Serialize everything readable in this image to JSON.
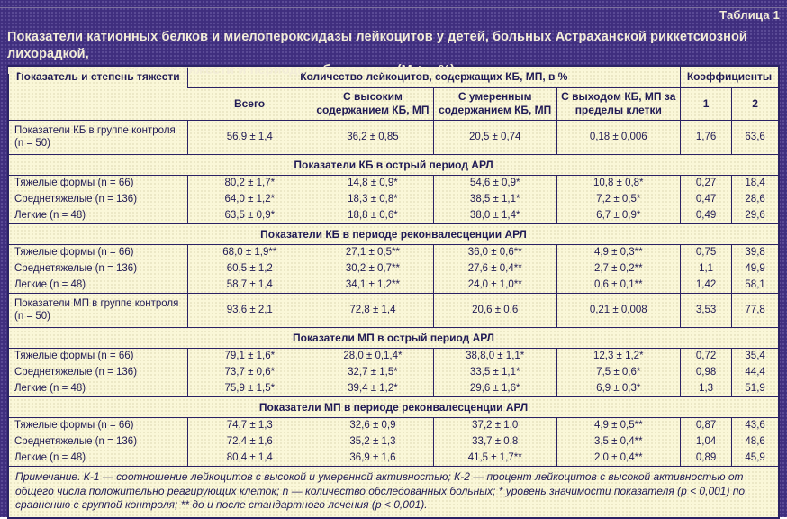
{
  "caption": "Таблица 1",
  "title": {
    "line1": "Показатели катионных белков и миелопероксидазы лейкоцитов у детей, больных Астраханской риккетсиозной лихорадкой,",
    "line2": "в зависимости от степени тяжести и периода заболевания (М ± m%)"
  },
  "header": {
    "indicator": "Показатель и степень тяжести",
    "group": "Количество лейкоцитов, содержащих КБ, МП, в %",
    "coefficients": "Коэффициенты",
    "sub_total": "Всего",
    "sub_high": "С высоким содержанием КБ, МП",
    "sub_moderate": "С умеренным содержанием КБ, МП",
    "sub_exit": "С выходом КБ, МП за пределы клетки",
    "sub_k1": "1",
    "sub_k2": "2"
  },
  "rows": [
    {
      "label": "Показатели КБ в группе контроля (n = 50)",
      "values": [
        "56,9 ± 1,4",
        "36,2 ± 0,85",
        "20,5 ± 0,74",
        "0,18 ± 0,006",
        "1,76",
        "63,6"
      ]
    },
    {
      "section": "Показатели КБ в острый период АРЛ"
    },
    {
      "label": "Тяжелые формы (n = 66)",
      "values": [
        "80,2 ± 1,7*",
        "14,8 ± 0,9*",
        "54,6 ± 0,9*",
        "10,8 ± 0,8*",
        "0,27",
        "18,4"
      ]
    },
    {
      "label": "Среднетяжелые (n = 136)",
      "values": [
        "64,0 ± 1,2*",
        "18,3 ± 0,8*",
        "38,5 ± 1,1*",
        "7,2 ± 0,5*",
        "0,47",
        "28,6"
      ]
    },
    {
      "label": "Легкие (n = 48)",
      "values": [
        "63,5 ± 0,9*",
        "18,8 ± 0,6*",
        "38,0 ± 1,4*",
        "6,7 ± 0,9*",
        "0,49",
        "29,6"
      ]
    },
    {
      "section": "Показатели КБ в периоде реконвалесценции АРЛ"
    },
    {
      "label": "Тяжелые формы (n = 66)",
      "values": [
        "68,0 ± 1,9**",
        "27,1 ± 0,5**",
        "36,0 ± 0,6**",
        "4,9 ± 0,3**",
        "0,75",
        "39,8"
      ]
    },
    {
      "label": "Среднетяжелые (n = 136)",
      "values": [
        "60,5 ± 1,2",
        "30,2 ± 0,7**",
        "27,6 ± 0,4**",
        "2,7 ± 0,2**",
        "1,1",
        "49,9"
      ]
    },
    {
      "label": "Легкие (n = 48)",
      "values": [
        "58,7 ± 1,4",
        "34,1 ± 1,2**",
        "24,0 ± 1,0**",
        "0,6 ± 0,1**",
        "1,42",
        "58,1"
      ]
    },
    {
      "label": "Показатели МП в группе контроля (n = 50)",
      "values": [
        "93,6 ± 2,1",
        "72,8 ± 1,4",
        "20,6 ± 0,6",
        "0,21 ± 0,008",
        "3,53",
        "77,8"
      ]
    },
    {
      "section": "Показатели МП в острый период АРЛ"
    },
    {
      "label": "Тяжелые формы (n = 66)",
      "values": [
        "79,1 ± 1,6*",
        "28,0 ± 0,1,4*",
        "38,8,0 ± 1,1*",
        "12,3 ± 1,2*",
        "0,72",
        "35,4"
      ]
    },
    {
      "label": "Среднетяжелые (n = 136)",
      "values": [
        "73,7 ± 0,6*",
        "32,7 ± 1,5*",
        "33,5 ± 1,1*",
        "7,5 ± 0,6*",
        "0,98",
        "44,4"
      ]
    },
    {
      "label": "Легкие (n = 48)",
      "values": [
        "75,9 ± 1,5*",
        "39,4 ± 1,2*",
        "29,6 ± 1,6*",
        "6,9 ± 0,3*",
        "1,3",
        "51,9"
      ]
    },
    {
      "section": "Показатели МП в периоде реконвалесценции АРЛ"
    },
    {
      "label": "Тяжелые формы (n = 66)",
      "values": [
        "74,7 ± 1,3",
        "32,6 ± 0,9",
        "37,2 ± 1,0",
        "4,9 ± 0,5**",
        "0,87",
        "43,6"
      ]
    },
    {
      "label": "Среднетяжелые (n = 136)",
      "values": [
        "72,4 ± 1,6",
        "35,2 ± 1,3",
        "33,7 ± 0,8",
        "3,5 ± 0,4**",
        "1,04",
        "48,6"
      ]
    },
    {
      "label": "Легкие (n = 48)",
      "values": [
        "80,4 ± 1,4",
        "36,9 ± 1,6",
        "41,5 ± 1,7**",
        "2.0 ± 0,4**",
        "0,89",
        "45,9"
      ]
    }
  ],
  "footnote": "Примечание. К-1 — соотношение лейкоцитов с высокой и умеренной активностью; К-2 — процент лейкоцитов с высокой активностью от общего числа положительно реагирующих клеток; n — количество обследованных больных; * уровень значимости показателя (р < 0,001) по сравнению с группой контроля; ** до и после стандартного лечения (р < 0,001).",
  "colors": {
    "frame_purple": "#3f2e7e",
    "panel_cream": "#faf7d8",
    "ink_navy": "#201a55",
    "border_navy": "#2b2264",
    "title_text": "#f3edd8"
  }
}
